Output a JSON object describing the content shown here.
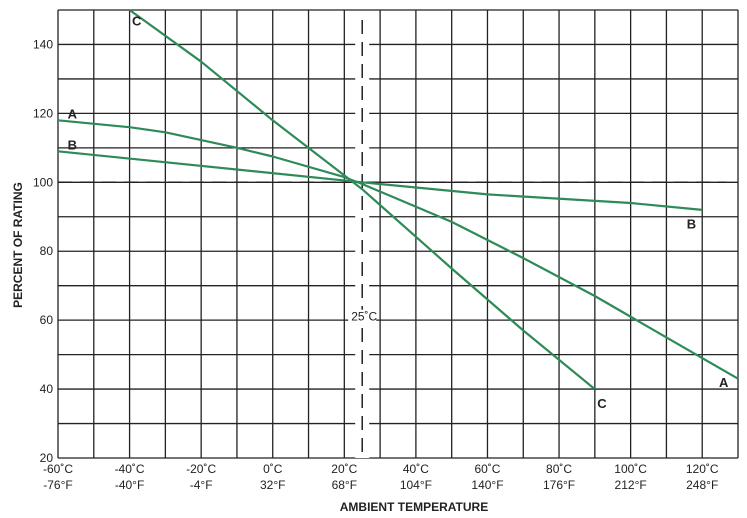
{
  "chart_data": {
    "type": "line",
    "xlabel": "AMBIENT TEMPERATURE",
    "ylabel": "PERCENT OF RATING",
    "xlim": [
      -60,
      130
    ],
    "ylim": [
      20,
      150
    ],
    "grid": true,
    "x_ticks": [
      {
        "value": -60,
        "c": "-60˚C",
        "f": "-76°F"
      },
      {
        "value": -40,
        "c": "-40˚C",
        "f": "-40°F"
      },
      {
        "value": -20,
        "c": "-20˚C",
        "f": "-4°F"
      },
      {
        "value": 0,
        "c": "0˚C",
        "f": "32°F"
      },
      {
        "value": 20,
        "c": "20˚C",
        "f": "68°F"
      },
      {
        "value": 40,
        "c": "40˚C",
        "f": "104°F"
      },
      {
        "value": 60,
        "c": "60˚C",
        "f": "140°F"
      },
      {
        "value": 80,
        "c": "80˚C",
        "f": "176°F"
      },
      {
        "value": 100,
        "c": "100˚C",
        "f": "212°F"
      },
      {
        "value": 120,
        "c": "120˚C",
        "f": "248°F"
      }
    ],
    "y_ticks": [
      "20",
      "40",
      "60",
      "80",
      "100",
      "120",
      "140"
    ],
    "reference_lines": [
      {
        "axis": "x",
        "value": 25,
        "label": "25˚C"
      },
      {
        "axis": "y",
        "value": 100,
        "label": ""
      }
    ],
    "series": [
      {
        "name": "A",
        "color": "#2e8b57",
        "x": [
          -60,
          -40,
          -30,
          -10,
          0,
          20,
          25,
          50,
          70,
          90,
          110,
          130
        ],
        "y": [
          118,
          116,
          114.5,
          110,
          107.5,
          101.5,
          99.5,
          88.5,
          78,
          67,
          55,
          43
        ],
        "label_start": "A",
        "label_end": "A"
      },
      {
        "name": "B",
        "color": "#2e8b57",
        "x": [
          -60,
          25,
          60,
          100,
          120
        ],
        "y": [
          109,
          100,
          96.5,
          94,
          92
        ],
        "label_start": "B",
        "label_end": "B"
      },
      {
        "name": "C",
        "color": "#2e8b57",
        "x": [
          -40,
          -20,
          0,
          20,
          25,
          50,
          70,
          90
        ],
        "y": [
          150,
          135,
          118,
          102,
          98,
          75,
          57,
          40
        ],
        "label_start": "C",
        "label_end": "C"
      }
    ]
  }
}
